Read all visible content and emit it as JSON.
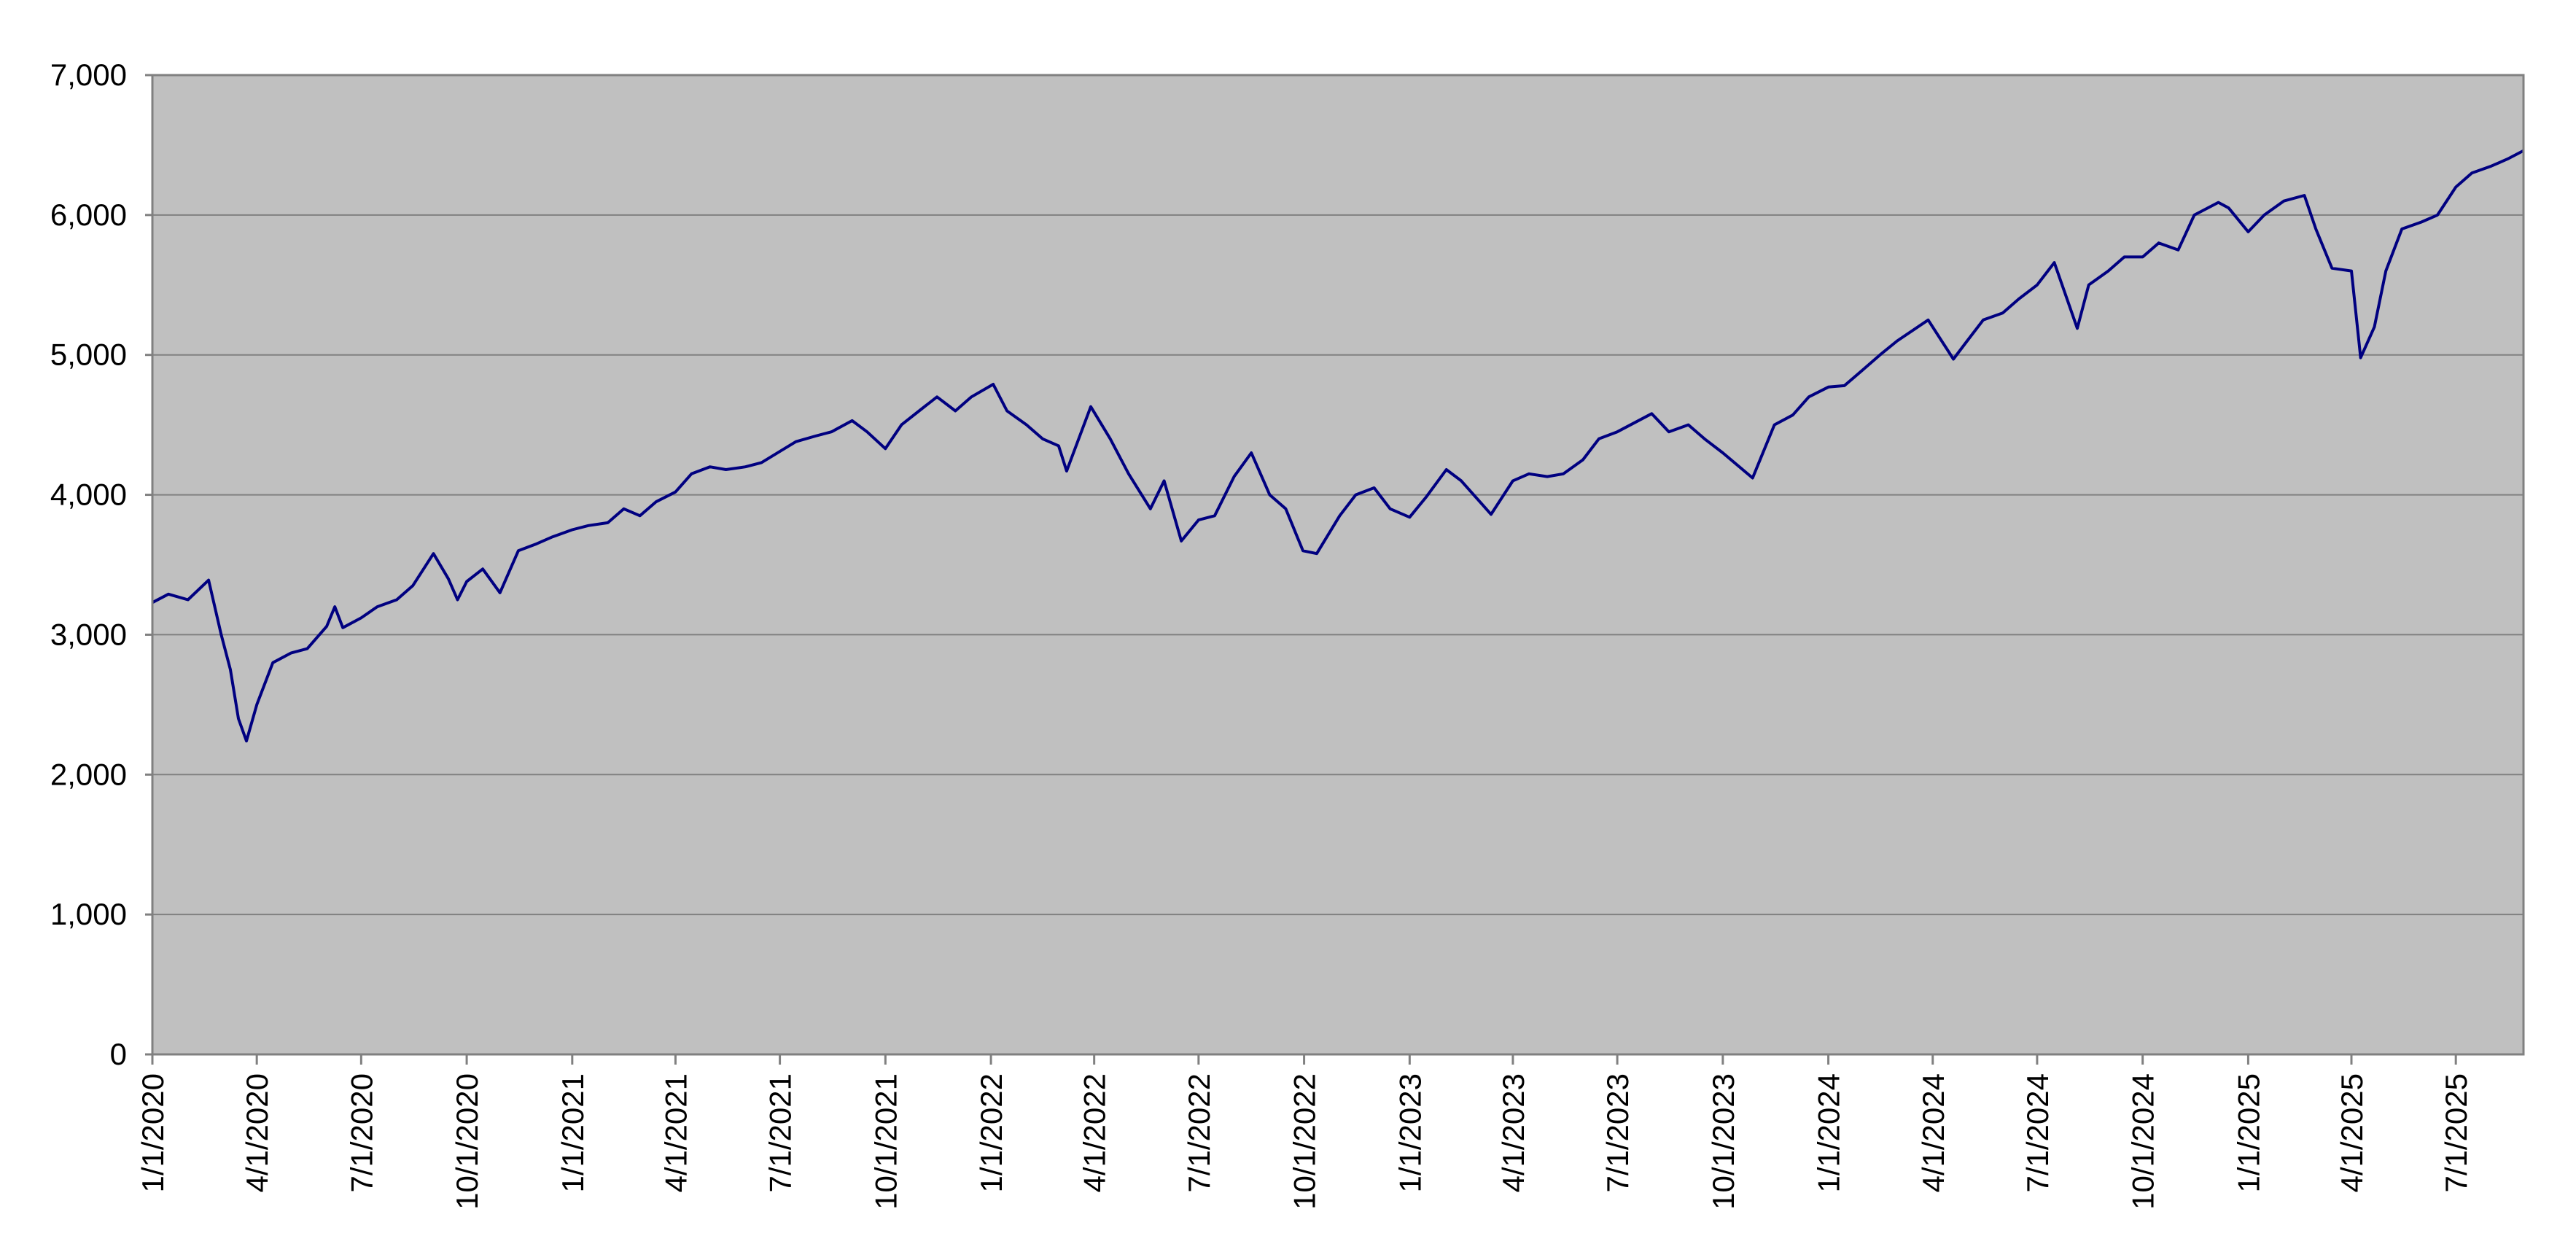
{
  "chart_data": {
    "type": "line",
    "title": "",
    "xlabel": "",
    "ylabel": "",
    "ylim": [
      0,
      7000
    ],
    "xlim": [
      "2020-01-01",
      "2025-08-29"
    ],
    "grid": "horizontal",
    "legend": "none",
    "colors": {
      "plot_background": "#c0c0c0",
      "line": "#000080",
      "gridline": "#808080",
      "axis": "#808080"
    },
    "y_ticks": [
      {
        "value": 0,
        "label": "0"
      },
      {
        "value": 1000,
        "label": "1,000"
      },
      {
        "value": 2000,
        "label": "2,000"
      },
      {
        "value": 3000,
        "label": "3,000"
      },
      {
        "value": 4000,
        "label": "4,000"
      },
      {
        "value": 5000,
        "label": "5,000"
      },
      {
        "value": 6000,
        "label": "6,000"
      },
      {
        "value": 7000,
        "label": "7,000"
      }
    ],
    "x_ticks": [
      {
        "date": "2020-01-01",
        "label": "1/1/2020"
      },
      {
        "date": "2020-04-01",
        "label": "4/1/2020"
      },
      {
        "date": "2020-07-01",
        "label": "7/1/2020"
      },
      {
        "date": "2020-10-01",
        "label": "10/1/2020"
      },
      {
        "date": "2021-01-01",
        "label": "1/1/2021"
      },
      {
        "date": "2021-04-01",
        "label": "4/1/2021"
      },
      {
        "date": "2021-07-01",
        "label": "7/1/2021"
      },
      {
        "date": "2021-10-01",
        "label": "10/1/2021"
      },
      {
        "date": "2022-01-01",
        "label": "1/1/2022"
      },
      {
        "date": "2022-04-01",
        "label": "4/1/2022"
      },
      {
        "date": "2022-07-01",
        "label": "7/1/2022"
      },
      {
        "date": "2022-10-01",
        "label": "10/1/2022"
      },
      {
        "date": "2023-01-01",
        "label": "1/1/2023"
      },
      {
        "date": "2023-04-01",
        "label": "4/1/2023"
      },
      {
        "date": "2023-07-01",
        "label": "7/1/2023"
      },
      {
        "date": "2023-10-01",
        "label": "10/1/2023"
      },
      {
        "date": "2024-01-01",
        "label": "1/1/2024"
      },
      {
        "date": "2024-04-01",
        "label": "4/1/2024"
      },
      {
        "date": "2024-07-01",
        "label": "7/1/2024"
      },
      {
        "date": "2024-10-01",
        "label": "10/1/2024"
      },
      {
        "date": "2025-01-01",
        "label": "1/1/2025"
      },
      {
        "date": "2025-04-01",
        "label": "4/1/2025"
      },
      {
        "date": "2025-07-01",
        "label": "7/1/2025"
      }
    ],
    "series": [
      {
        "x": [
          "2020-01-01",
          "2020-01-15",
          "2020-02-01",
          "2020-02-19",
          "2020-03-01",
          "2020-03-09",
          "2020-03-16",
          "2020-03-23",
          "2020-04-01",
          "2020-04-15",
          "2020-05-01",
          "2020-05-15",
          "2020-06-01",
          "2020-06-08",
          "2020-06-15",
          "2020-07-01",
          "2020-07-15",
          "2020-08-01",
          "2020-08-15",
          "2020-09-02",
          "2020-09-15",
          "2020-09-23",
          "2020-10-01",
          "2020-10-15",
          "2020-10-30",
          "2020-11-15",
          "2020-12-01",
          "2020-12-15",
          "2021-01-01",
          "2021-01-15",
          "2021-02-01",
          "2021-02-15",
          "2021-03-01",
          "2021-03-15",
          "2021-04-01",
          "2021-04-15",
          "2021-05-01",
          "2021-05-15",
          "2021-06-01",
          "2021-06-15",
          "2021-07-01",
          "2021-07-15",
          "2021-08-01",
          "2021-08-15",
          "2021-09-02",
          "2021-09-15",
          "2021-10-01",
          "2021-10-15",
          "2021-11-01",
          "2021-11-15",
          "2021-12-01",
          "2021-12-15",
          "2022-01-03",
          "2022-01-15",
          "2022-02-01",
          "2022-02-15",
          "2022-03-01",
          "2022-03-08",
          "2022-03-29",
          "2022-04-15",
          "2022-05-01",
          "2022-05-20",
          "2022-06-01",
          "2022-06-16",
          "2022-07-01",
          "2022-07-15",
          "2022-08-01",
          "2022-08-16",
          "2022-09-01",
          "2022-09-15",
          "2022-09-30",
          "2022-10-12",
          "2022-11-01",
          "2022-11-15",
          "2022-12-01",
          "2022-12-15",
          "2023-01-01",
          "2023-01-15",
          "2023-02-02",
          "2023-02-15",
          "2023-03-13",
          "2023-04-01",
          "2023-04-15",
          "2023-05-01",
          "2023-05-15",
          "2023-06-01",
          "2023-06-15",
          "2023-07-01",
          "2023-07-31",
          "2023-08-15",
          "2023-09-01",
          "2023-09-15",
          "2023-10-01",
          "2023-10-27",
          "2023-11-15",
          "2023-12-01",
          "2023-12-15",
          "2024-01-01",
          "2024-01-15",
          "2024-02-01",
          "2024-02-15",
          "2024-03-01",
          "2024-03-28",
          "2024-04-19",
          "2024-05-01",
          "2024-05-15",
          "2024-06-01",
          "2024-06-15",
          "2024-07-01",
          "2024-07-16",
          "2024-08-05",
          "2024-08-15",
          "2024-09-01",
          "2024-09-15",
          "2024-10-01",
          "2024-10-15",
          "2024-11-01",
          "2024-11-15",
          "2024-12-06",
          "2024-12-15",
          "2025-01-01",
          "2025-01-15",
          "2025-02-01",
          "2025-02-19",
          "2025-03-01",
          "2025-03-15",
          "2025-04-01",
          "2025-04-08",
          "2025-04-09",
          "2025-04-21",
          "2025-05-01",
          "2025-05-15",
          "2025-06-01",
          "2025-06-15",
          "2025-07-01",
          "2025-07-15",
          "2025-08-01",
          "2025-08-15",
          "2025-08-29"
        ],
        "values": [
          3230,
          3290,
          3250,
          3390,
          3000,
          2750,
          2400,
          2240,
          2500,
          2800,
          2870,
          2900,
          3060,
          3200,
          3050,
          3120,
          3200,
          3250,
          3350,
          3580,
          3400,
          3250,
          3380,
          3470,
          3300,
          3600,
          3650,
          3700,
          3750,
          3780,
          3800,
          3900,
          3850,
          3950,
          4020,
          4150,
          4200,
          4180,
          4200,
          4230,
          4310,
          4380,
          4420,
          4450,
          4530,
          4450,
          4330,
          4500,
          4610,
          4700,
          4600,
          4700,
          4790,
          4600,
          4500,
          4400,
          4350,
          4170,
          4630,
          4400,
          4150,
          3900,
          4100,
          3670,
          3820,
          3850,
          4130,
          4300,
          4000,
          3900,
          3600,
          3580,
          3850,
          4000,
          4050,
          3900,
          3840,
          3980,
          4180,
          4100,
          3860,
          4100,
          4150,
          4130,
          4150,
          4250,
          4400,
          4450,
          4580,
          4450,
          4500,
          4400,
          4300,
          4120,
          4500,
          4570,
          4700,
          4770,
          4780,
          4900,
          5000,
          5100,
          5250,
          4970,
          5100,
          5250,
          5300,
          5400,
          5500,
          5660,
          5190,
          5500,
          5600,
          5700,
          5700,
          5800,
          5750,
          6000,
          6090,
          6050,
          5880,
          6000,
          6100,
          6140,
          5900,
          5620,
          5600,
          5060,
          4980,
          5200,
          5600,
          5900,
          5950,
          6000,
          6200,
          6300,
          6350,
          6400,
          6460
        ]
      }
    ]
  }
}
